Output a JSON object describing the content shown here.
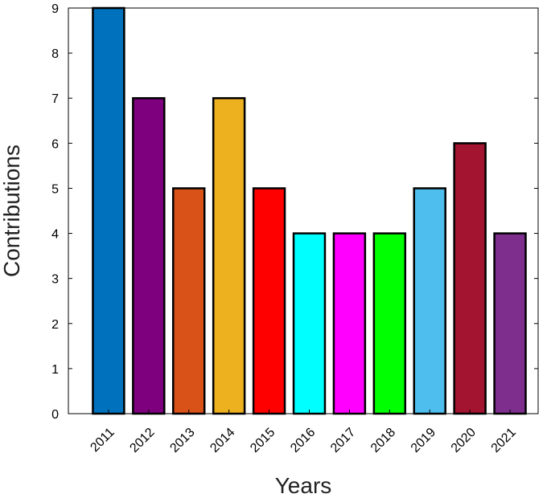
{
  "chart_data": {
    "type": "bar",
    "title": "",
    "xlabel": "Years",
    "ylabel": "Contributions",
    "categories": [
      "2011",
      "2012",
      "2013",
      "2014",
      "2015",
      "2016",
      "2017",
      "2018",
      "2019",
      "2020",
      "2021"
    ],
    "values": [
      9,
      7,
      5,
      7,
      5,
      4,
      4,
      4,
      5,
      6,
      4
    ],
    "colors": [
      "#0072BD",
      "#7E007E",
      "#D95319",
      "#EDB120",
      "#FF0000",
      "#00FFFF",
      "#FF00FF",
      "#00FF00",
      "#4DBEEE",
      "#A2142F",
      "#7E2F8E"
    ],
    "ylim": [
      0,
      9
    ],
    "yticks": [
      "0",
      "1",
      "2",
      "3",
      "4",
      "5",
      "6",
      "7",
      "8",
      "9"
    ],
    "grid": false,
    "legend": "none"
  }
}
